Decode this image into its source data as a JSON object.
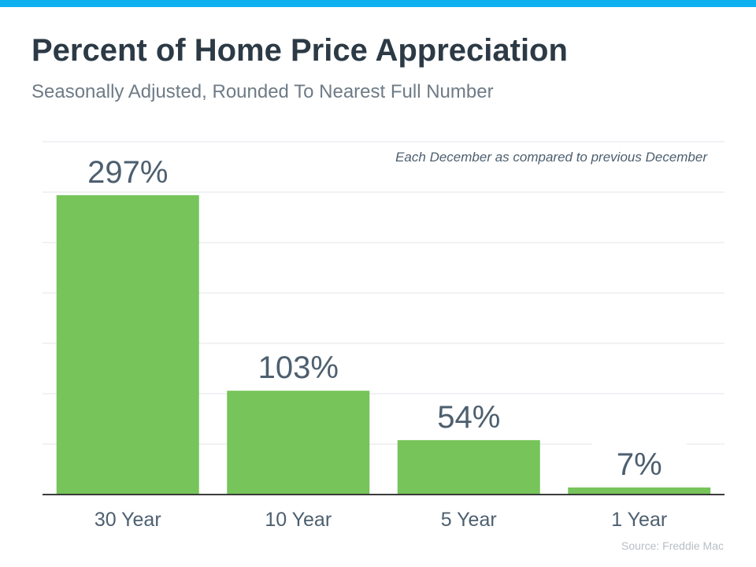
{
  "header": {
    "accent_color": "#0fb0ef",
    "title": "Percent of Home Price Appreciation",
    "subtitle": "Seasonally Adjusted, Rounded To Nearest Full Number"
  },
  "chart_data": {
    "type": "bar",
    "title": "Percent of Home Price Appreciation",
    "subtitle": "Seasonally Adjusted, Rounded To Nearest Full Number",
    "categories": [
      "30 Year",
      "10 Year",
      "5 Year",
      "1 Year"
    ],
    "values": [
      297,
      103,
      54,
      7
    ],
    "value_labels": [
      "297%",
      "103%",
      "54%",
      "7%"
    ],
    "unit": "%",
    "xlabel": "",
    "ylabel": "",
    "ylim": [
      0,
      350
    ],
    "grid": true,
    "bar_color": "#76c45a",
    "annotation": "Each December as compared to previous December",
    "source": "Source: Freddie Mac"
  }
}
